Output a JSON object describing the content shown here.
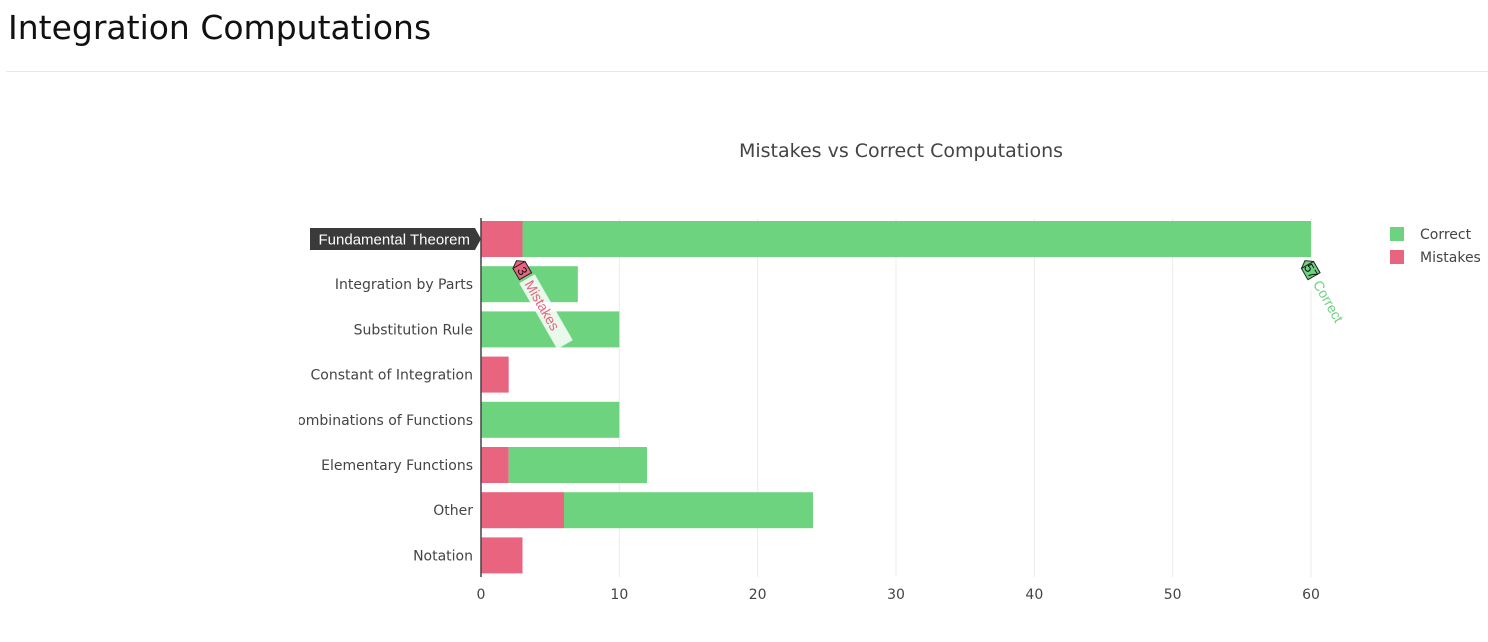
{
  "page": {
    "title": "Integration Computations"
  },
  "chart_data": {
    "type": "bar",
    "orientation": "horizontal",
    "barmode": "stack",
    "title": "Mistakes vs Correct Computations",
    "xlabel": "",
    "ylabel": "",
    "xlim": [
      0,
      60
    ],
    "xticks": [
      0,
      10,
      20,
      30,
      40,
      50,
      60
    ],
    "grid": true,
    "legend_position": "top-right",
    "categories": [
      "Fundamental Theorem",
      "Integration by Parts",
      "Substitution Rule",
      "Constant of Integration",
      "Combinations of Functions",
      "Elementary Functions",
      "Other",
      "Notation"
    ],
    "highlighted_category": "Fundamental Theorem",
    "series": [
      {
        "name": "Mistakes",
        "color": "#e8647f",
        "values": [
          3,
          0,
          0,
          2,
          0,
          2,
          6,
          3
        ]
      },
      {
        "name": "Correct",
        "color": "#6dd37f",
        "values": [
          57,
          7,
          10,
          0,
          10,
          10,
          18,
          0
        ]
      }
    ],
    "legend": [
      "Correct",
      "Mistakes"
    ],
    "hover_labels": [
      {
        "series": "Mistakes",
        "category": "Fundamental Theorem",
        "value": "3",
        "name": "Mistakes"
      },
      {
        "series": "Correct",
        "category": "Fundamental Theorem",
        "value": "57",
        "name": "Correct"
      }
    ]
  }
}
